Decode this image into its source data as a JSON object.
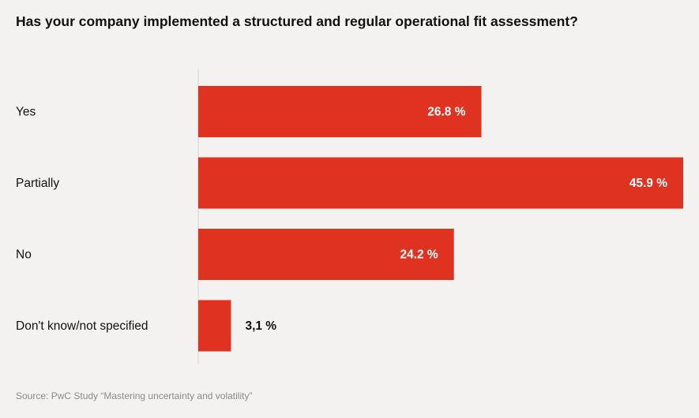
{
  "chart_data": {
    "type": "bar",
    "orientation": "horizontal",
    "title": "Has your company implemented a structured and regular operational fit assessment?",
    "categories": [
      "Yes",
      "Partially",
      "No",
      "Don't know/not specified"
    ],
    "values": [
      26.8,
      45.9,
      24.2,
      3.1
    ],
    "value_labels": [
      "26.8 %",
      "45.9 %",
      "24.2 %",
      "3,1 %"
    ],
    "xlim": [
      0,
      45.9
    ],
    "bar_color": "#e03220",
    "grid": false,
    "legend": "none"
  },
  "source": "Source: PwC Study “Mastering uncertainty and volatility”"
}
